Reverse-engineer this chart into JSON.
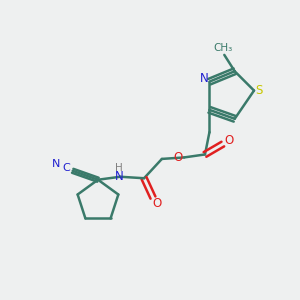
{
  "bg_color": "#eef0f0",
  "bond_color": "#3a7a6a",
  "atom_colors": {
    "N": "#2020d0",
    "O": "#e02020",
    "S": "#c8c800",
    "C_label": "#2020d0",
    "H": "#808080",
    "default": "#3a7a6a"
  },
  "title": ""
}
